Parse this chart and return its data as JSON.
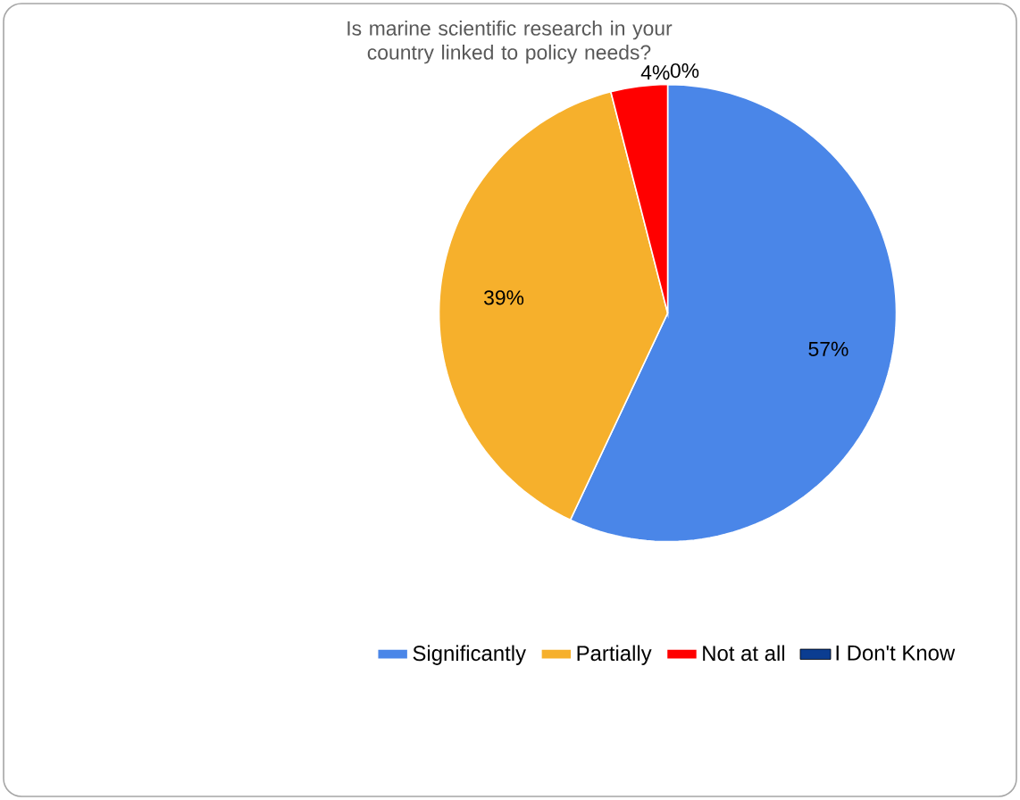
{
  "chart_data": {
    "type": "pie",
    "title": "Is marine scientific research in your country linked to policy needs?",
    "categories": [
      "Significantly",
      "Partially",
      "Not at all",
      "I Don't Know"
    ],
    "values": [
      57,
      39,
      4,
      0
    ],
    "colors": [
      "#4a86e8",
      "#f6b02c",
      "#ff0000",
      "#0b3d91"
    ],
    "value_labels": [
      "57%",
      "39%",
      "4%",
      "0%"
    ],
    "legend": "bottom"
  }
}
